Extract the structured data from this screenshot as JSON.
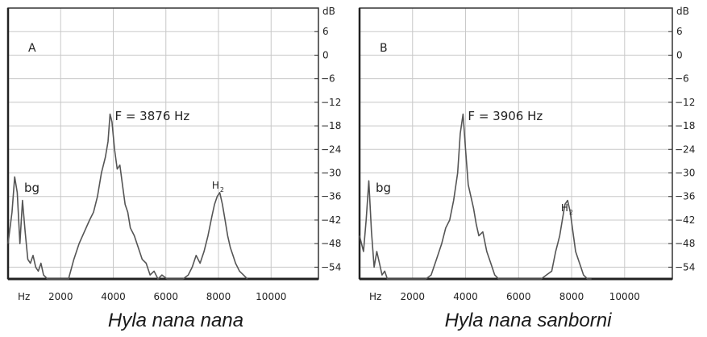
{
  "chart_data": [
    {
      "type": "line",
      "panel_label": "A",
      "caption": "Hyla nana nana",
      "peak_annotation": "F = 3876 Hz",
      "annotations": [
        "bg",
        "H",
        "2"
      ],
      "xlabel": "Hz",
      "xticks": [
        2000,
        4000,
        6000,
        8000,
        10000
      ],
      "xlim": [
        0,
        11800
      ],
      "ylabel": "dB",
      "yticks": [
        6,
        0,
        -6,
        -12,
        -18,
        -24,
        -30,
        -36,
        -42,
        -48,
        -54
      ],
      "ylim": [
        -57,
        12
      ],
      "grid": true,
      "series": [
        {
          "x": [
            0,
            150,
            250,
            350,
            450,
            550,
            650,
            750,
            850,
            950,
            1050,
            1150,
            1250,
            1350,
            1500,
            1650,
            1800,
            1950,
            2100,
            2300,
            2500,
            2700,
            2900,
            3100,
            3250,
            3400,
            3550,
            3700,
            3800,
            3876,
            3950,
            4050,
            4150,
            4250,
            4350,
            4450,
            4550,
            4650,
            4800,
            4950,
            5100,
            5250,
            5400,
            5550,
            5700,
            5850,
            6050,
            6250,
            6450,
            6650,
            6850,
            7000,
            7150,
            7300,
            7450,
            7600,
            7750,
            7850,
            7950,
            8050,
            8150,
            8250,
            8350,
            8450,
            8550,
            8650,
            8800,
            8950,
            9100
          ],
          "y": [
            -48,
            -40,
            -31,
            -35,
            -48,
            -37,
            -45,
            -52,
            -53,
            -51,
            -54,
            -55,
            -53,
            -56,
            -57,
            -57,
            -57,
            -57,
            -57,
            -57,
            -52,
            -48,
            -45,
            -42,
            -40,
            -36,
            -30,
            -26,
            -22,
            -15,
            -17,
            -24,
            -29,
            -28,
            -33,
            -38,
            -40,
            -44,
            -46,
            -49,
            -52,
            -53,
            -56,
            -55,
            -57,
            -56,
            -57,
            -57,
            -57,
            -57,
            -56,
            -54,
            -51,
            -53,
            -50,
            -46,
            -41,
            -38,
            -36,
            -35,
            -38,
            -42,
            -46,
            -49,
            -51,
            -53,
            -55,
            -56,
            -57
          ]
        }
      ]
    },
    {
      "type": "line",
      "panel_label": "B",
      "caption": "Hyla nana sanborni",
      "peak_annotation": "F = 3906 Hz",
      "annotations": [
        "bg",
        "H",
        "2"
      ],
      "xlabel": "Hz",
      "xticks": [
        2000,
        4000,
        6000,
        8000,
        10000
      ],
      "xlim": [
        0,
        11800
      ],
      "ylabel": "dB",
      "yticks": [
        6,
        0,
        -6,
        -12,
        -18,
        -24,
        -30,
        -36,
        -42,
        -48,
        -54
      ],
      "ylim": [
        -57,
        12
      ],
      "grid": true,
      "series": [
        {
          "x": [
            0,
            150,
            250,
            350,
            450,
            550,
            650,
            750,
            850,
            950,
            1050,
            1150,
            1250,
            1350,
            1500,
            1650,
            1800,
            1950,
            2100,
            2300,
            2500,
            2700,
            2900,
            3100,
            3250,
            3400,
            3550,
            3700,
            3800,
            3906,
            4000,
            4100,
            4200,
            4300,
            4400,
            4500,
            4650,
            4800,
            4950,
            5100,
            5250,
            5400,
            5550,
            5700,
            5850,
            6050,
            6250,
            6450,
            6650,
            6850,
            7050,
            7250,
            7400,
            7550,
            7650,
            7750,
            7850,
            7950,
            8050,
            8150,
            8250,
            8350,
            8450,
            8600,
            8750
          ],
          "y": [
            -46,
            -50,
            -42,
            -32,
            -45,
            -54,
            -50,
            -53,
            -56,
            -55,
            -57,
            -57,
            -57,
            -57,
            -57,
            -57,
            -57,
            -57,
            -57,
            -57,
            -57,
            -56,
            -52,
            -48,
            -44,
            -42,
            -37,
            -30,
            -20,
            -15,
            -24,
            -33,
            -36,
            -39,
            -43,
            -46,
            -45,
            -50,
            -53,
            -56,
            -57,
            -57,
            -57,
            -57,
            -57,
            -57,
            -57,
            -57,
            -57,
            -57,
            -56,
            -55,
            -50,
            -46,
            -42,
            -38,
            -37,
            -40,
            -45,
            -50,
            -52,
            -54,
            -56,
            -57,
            -57
          ]
        }
      ]
    }
  ]
}
